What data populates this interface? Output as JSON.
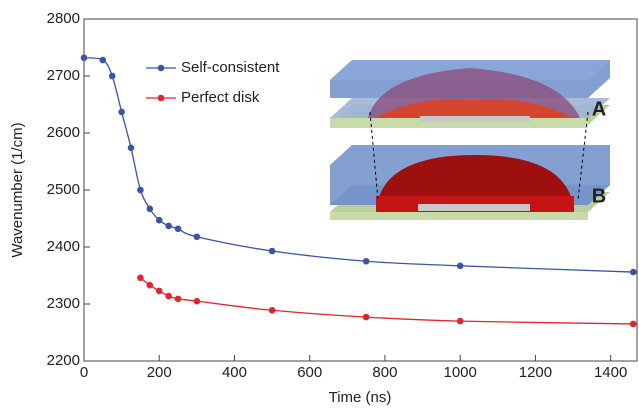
{
  "chart_data": {
    "type": "line",
    "xlabel": "Time (ns)",
    "ylabel": "Wavenumber (1/cm)",
    "xlim": [
      0,
      1470
    ],
    "ylim": [
      2200,
      2800
    ],
    "xticks": [
      0,
      200,
      400,
      600,
      800,
      1000,
      1200,
      1400
    ],
    "yticks": [
      2200,
      2300,
      2400,
      2500,
      2600,
      2700,
      2800
    ],
    "legend": "upper-left",
    "annotations": [
      "A",
      "B"
    ],
    "series": [
      {
        "name": "Self-consistent",
        "color": "#3a55a8",
        "x": [
          0,
          50,
          75,
          100,
          125,
          150,
          175,
          200,
          225,
          250,
          300,
          500,
          750,
          1000,
          1460
        ],
        "values": [
          2732,
          2728,
          2700,
          2637,
          2574,
          2500,
          2467,
          2447,
          2437,
          2432,
          2418,
          2393,
          2375,
          2367,
          2356
        ]
      },
      {
        "name": "Perfect disk",
        "color": "#e3242b",
        "x": [
          150,
          175,
          200,
          225,
          250,
          300,
          500,
          750,
          1000,
          1460
        ],
        "values": [
          2346,
          2333,
          2323,
          2314,
          2309,
          2305,
          2289,
          2277,
          2270,
          2265
        ]
      }
    ]
  }
}
